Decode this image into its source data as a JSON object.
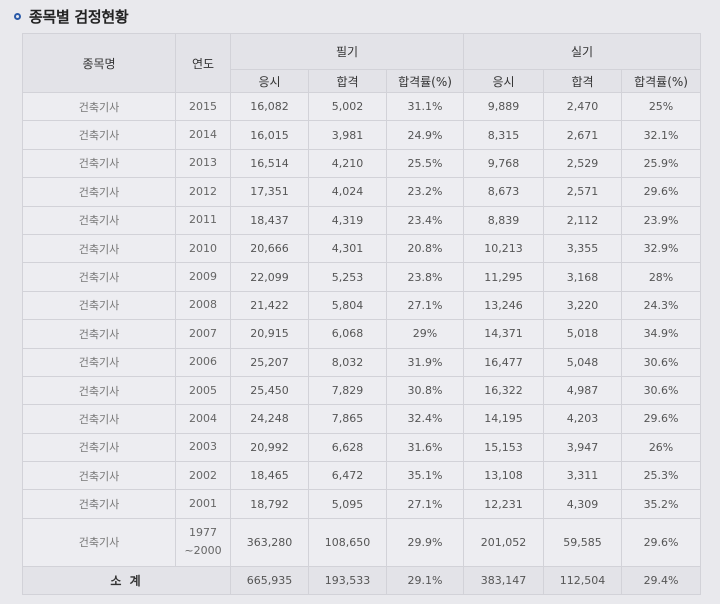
{
  "section": {
    "title": "종목별 검정현황"
  },
  "table": {
    "headers": {
      "name": "종목명",
      "year": "연도",
      "written": "필기",
      "practical": "실기",
      "sub": [
        "응시",
        "합격",
        "합격률(%)",
        "응시",
        "합격",
        "합격률(%)"
      ]
    },
    "rows": [
      {
        "name": "건축기사",
        "year": "2015",
        "cells": [
          "16,082",
          "5,002",
          "31.1%",
          "9,889",
          "2,470",
          "25%"
        ]
      },
      {
        "name": "건축기사",
        "year": "2014",
        "cells": [
          "16,015",
          "3,981",
          "24.9%",
          "8,315",
          "2,671",
          "32.1%"
        ]
      },
      {
        "name": "건축기사",
        "year": "2013",
        "cells": [
          "16,514",
          "4,210",
          "25.5%",
          "9,768",
          "2,529",
          "25.9%"
        ]
      },
      {
        "name": "건축기사",
        "year": "2012",
        "cells": [
          "17,351",
          "4,024",
          "23.2%",
          "8,673",
          "2,571",
          "29.6%"
        ]
      },
      {
        "name": "건축기사",
        "year": "2011",
        "cells": [
          "18,437",
          "4,319",
          "23.4%",
          "8,839",
          "2,112",
          "23.9%"
        ]
      },
      {
        "name": "건축기사",
        "year": "2010",
        "cells": [
          "20,666",
          "4,301",
          "20.8%",
          "10,213",
          "3,355",
          "32.9%"
        ]
      },
      {
        "name": "건축기사",
        "year": "2009",
        "cells": [
          "22,099",
          "5,253",
          "23.8%",
          "11,295",
          "3,168",
          "28%"
        ]
      },
      {
        "name": "건축기사",
        "year": "2008",
        "cells": [
          "21,422",
          "5,804",
          "27.1%",
          "13,246",
          "3,220",
          "24.3%"
        ]
      },
      {
        "name": "건축기사",
        "year": "2007",
        "cells": [
          "20,915",
          "6,068",
          "29%",
          "14,371",
          "5,018",
          "34.9%"
        ]
      },
      {
        "name": "건축기사",
        "year": "2006",
        "cells": [
          "25,207",
          "8,032",
          "31.9%",
          "16,477",
          "5,048",
          "30.6%"
        ]
      },
      {
        "name": "건축기사",
        "year": "2005",
        "cells": [
          "25,450",
          "7,829",
          "30.8%",
          "16,322",
          "4,987",
          "30.6%"
        ]
      },
      {
        "name": "건축기사",
        "year": "2004",
        "cells": [
          "24,248",
          "7,865",
          "32.4%",
          "14,195",
          "4,203",
          "29.6%"
        ]
      },
      {
        "name": "건축기사",
        "year": "2003",
        "cells": [
          "20,992",
          "6,628",
          "31.6%",
          "15,153",
          "3,947",
          "26%"
        ]
      },
      {
        "name": "건축기사",
        "year": "2002",
        "cells": [
          "18,465",
          "6,472",
          "35.1%",
          "13,108",
          "3,311",
          "25.3%"
        ]
      },
      {
        "name": "건축기사",
        "year": "2001",
        "cells": [
          "18,792",
          "5,095",
          "27.1%",
          "12,231",
          "4,309",
          "35.2%"
        ]
      }
    ],
    "range_row": {
      "name": "건축기사",
      "year_top": "1977",
      "year_bottom": "~2000",
      "cells": [
        "363,280",
        "108,650",
        "29.9%",
        "201,052",
        "59,585",
        "29.6%"
      ]
    },
    "total": {
      "label": "소 계",
      "cells": [
        "665,935",
        "193,533",
        "29.1%",
        "383,147",
        "112,504",
        "29.4%"
      ]
    }
  }
}
